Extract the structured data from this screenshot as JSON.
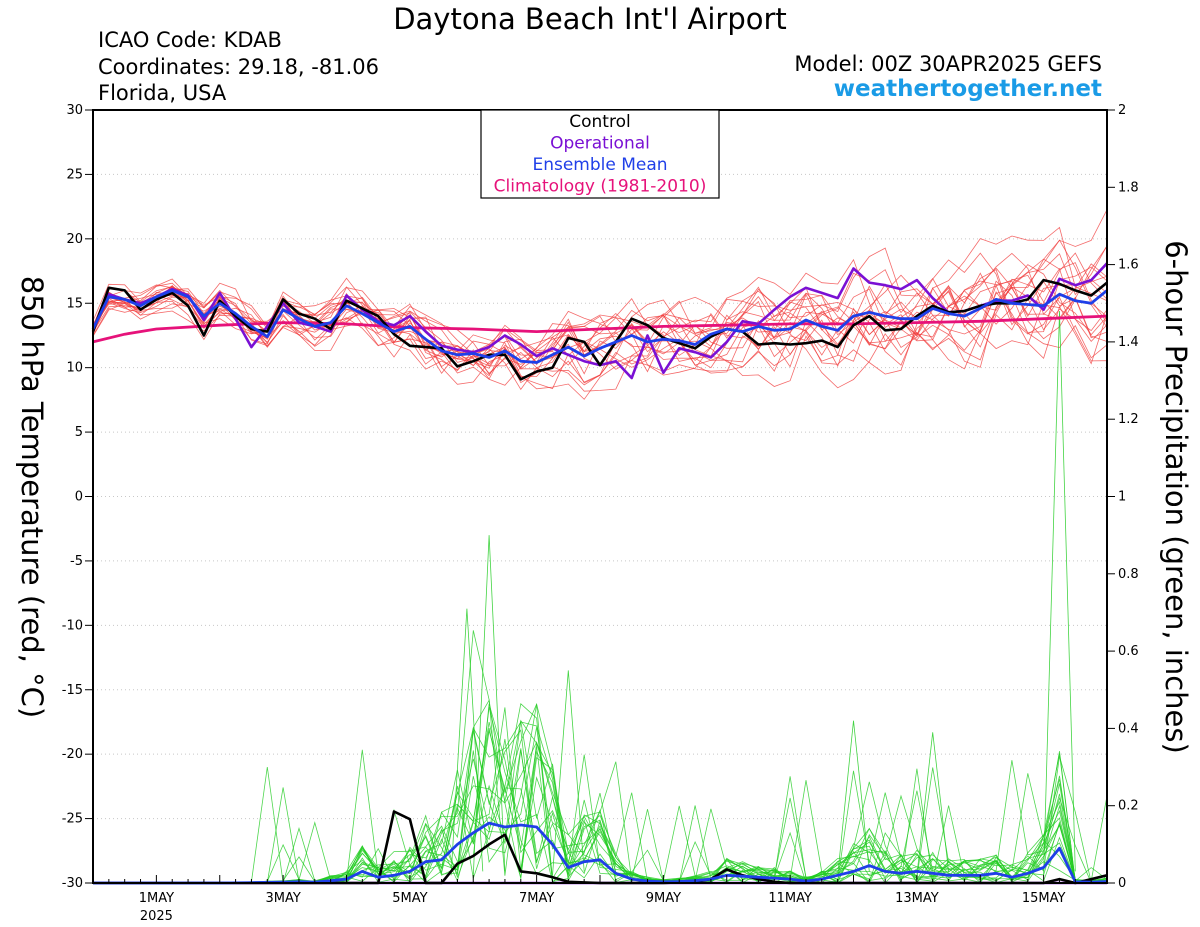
{
  "header": {
    "title": "Daytona Beach Int'l Airport",
    "icao": "ICAO Code: KDAB",
    "coordinates": "Coordinates: 29.18, -81.06",
    "region": "Florida, USA",
    "model": "Model: 00Z 30APR2025 GEFS",
    "site": "weathertogether.net"
  },
  "colors": {
    "control": "#000000",
    "operational": "#7a10d4",
    "ensemble_mean": "#1f3fe8",
    "climatology": "#e6127a",
    "members_temp": "#f03a3a",
    "members_precip": "#22cc22",
    "site": "#1a9be6"
  },
  "chart_data": {
    "type": "line",
    "xlabel": "",
    "ylabel_left": "850 hPa Temperature (red, °C)",
    "ylabel_right": "6-hour Precipitation (green, inches)",
    "x_units": "days since 30 Apr 2025 00Z",
    "xlim": [
      0,
      16
    ],
    "ylim_left": [
      -30,
      30
    ],
    "ylim_right": [
      0,
      2
    ],
    "left_ticks": [
      30,
      25,
      20,
      15,
      10,
      5,
      0,
      -5,
      -10,
      -15,
      -20,
      -25,
      -30
    ],
    "right_ticks": [
      "2",
      "1.8",
      "1.6",
      "1.4",
      "1.2",
      "1",
      "0.8",
      "0.6",
      "0.4",
      "0.2",
      "0"
    ],
    "x_ticks": [
      {
        "x": 1,
        "label": "1MAY",
        "sub": "2025"
      },
      {
        "x": 3,
        "label": "3MAY",
        "sub": ""
      },
      {
        "x": 5,
        "label": "5MAY",
        "sub": ""
      },
      {
        "x": 7,
        "label": "7MAY",
        "sub": ""
      },
      {
        "x": 9,
        "label": "9MAY",
        "sub": ""
      },
      {
        "x": 11,
        "label": "11MAY",
        "sub": ""
      },
      {
        "x": 13,
        "label": "13MAY",
        "sub": ""
      },
      {
        "x": 15,
        "label": "15MAY",
        "sub": ""
      }
    ],
    "legend": [
      {
        "label": "Control",
        "key": "control"
      },
      {
        "label": "Operational",
        "key": "operational"
      },
      {
        "label": "Ensemble Mean",
        "key": "ensemble_mean"
      },
      {
        "label": "Climatology (1981-2010)",
        "key": "climatology"
      }
    ],
    "series": [
      {
        "name": "Ensemble Mean",
        "axis": "left",
        "key": "ensemble_mean",
        "x": [
          0,
          0.25,
          0.5,
          0.75,
          1,
          1.25,
          1.5,
          1.75,
          2,
          2.25,
          2.5,
          2.75,
          3,
          3.25,
          3.5,
          3.75,
          4,
          4.25,
          4.5,
          4.75,
          5,
          5.25,
          5.5,
          5.75,
          6,
          6.25,
          6.5,
          6.75,
          7,
          7.25,
          7.5,
          7.75,
          8,
          8.25,
          8.5,
          8.75,
          9,
          9.25,
          9.5,
          9.75,
          10,
          10.25,
          10.5,
          10.75,
          11,
          11.25,
          11.5,
          11.75,
          12,
          12.25,
          12.5,
          12.75,
          13,
          13.25,
          13.5,
          13.75,
          14,
          14.25,
          14.5,
          14.75,
          15,
          15.25,
          15.5,
          15.75,
          16
        ],
        "y": [
          13,
          15.5,
          15.3,
          14.8,
          15.5,
          16,
          15.5,
          14,
          15,
          14.2,
          13.2,
          12.4,
          14.5,
          13.8,
          13.2,
          13.5,
          14.8,
          14.2,
          13.5,
          12.8,
          13.2,
          12.2,
          11.3,
          11,
          11.1,
          10.8,
          11.3,
          10.5,
          10.4,
          11,
          11.6,
          10.9,
          11.5,
          12,
          12.5,
          12,
          12.2,
          12.1,
          11.8,
          12.6,
          13,
          12.8,
          13.2,
          12.9,
          13,
          13.7,
          13.2,
          12.9,
          14,
          14.3,
          14,
          13.8,
          13.8,
          14.6,
          14.2,
          14,
          14.6,
          15.3,
          15,
          14.9,
          14.8,
          15.7,
          15.2,
          15,
          16
        ]
      },
      {
        "name": "Control",
        "axis": "left",
        "key": "control",
        "x": [
          0,
          0.25,
          0.5,
          0.75,
          1,
          1.25,
          1.5,
          1.75,
          2,
          2.25,
          2.5,
          2.75,
          3,
          3.25,
          3.5,
          3.75,
          4,
          4.25,
          4.5,
          4.75,
          5,
          5.25,
          5.5,
          5.75,
          6,
          6.25,
          6.5,
          6.75,
          7,
          7.25,
          7.5,
          7.75,
          8,
          8.25,
          8.5,
          8.75,
          9,
          9.25,
          9.5,
          9.75,
          10,
          10.25,
          10.5,
          10.75,
          11,
          11.25,
          11.5,
          11.75,
          12,
          12.25,
          12.5,
          12.75,
          13,
          13.25,
          13.5,
          13.75,
          14,
          14.25,
          14.5,
          14.75,
          15,
          15.25,
          15.5,
          15.75,
          16
        ],
        "y": [
          12.8,
          16.2,
          16,
          14.5,
          15.3,
          15.8,
          14.8,
          12.5,
          15.2,
          14,
          13,
          12.8,
          15.3,
          14.2,
          13.8,
          13,
          15.2,
          14.6,
          14,
          12.6,
          11.7,
          11.6,
          11.5,
          10.1,
          10.5,
          11,
          11,
          9.1,
          9.7,
          10,
          12.3,
          12,
          10.2,
          12,
          13.8,
          13.3,
          12.3,
          11.9,
          11.5,
          12.4,
          13,
          12.8,
          11.8,
          11.9,
          11.8,
          11.9,
          12.1,
          11.6,
          13.3,
          14,
          12.9,
          13,
          14,
          14.8,
          14.3,
          14.4,
          14.8,
          15,
          15,
          15.3,
          16.8,
          16.5,
          16,
          15.6,
          16.6
        ]
      },
      {
        "name": "Operational",
        "axis": "left",
        "key": "operational",
        "x": [
          0,
          0.25,
          0.5,
          0.75,
          1,
          1.25,
          1.5,
          1.75,
          2,
          2.25,
          2.5,
          2.75,
          3,
          3.25,
          3.5,
          3.75,
          4,
          4.25,
          4.5,
          4.75,
          5,
          5.25,
          5.5,
          5.75,
          6,
          6.25,
          6.5,
          6.75,
          7,
          7.25,
          7.5,
          7.75,
          8,
          8.25,
          8.5,
          8.75,
          9,
          9.25,
          9.5,
          9.75,
          10,
          10.25,
          10.5,
          10.75,
          11,
          11.25,
          11.5,
          11.75,
          12,
          12.25,
          12.5,
          12.75,
          13,
          13.25,
          13.5,
          13.75,
          14,
          14.25,
          14.5,
          14.75,
          15,
          15.25,
          15.5,
          15.75,
          16
        ],
        "y": [
          13,
          15.7,
          15.3,
          15,
          15.5,
          16.1,
          15.6,
          13.7,
          15.8,
          13.8,
          11.6,
          13.2,
          15,
          13.5,
          13.2,
          12.8,
          15.6,
          14.5,
          13.6,
          13.3,
          14,
          12.8,
          11.7,
          11.4,
          11.2,
          11.6,
          12.5,
          11.8,
          10.9,
          11.5,
          11,
          10.5,
          10.2,
          10.5,
          9.2,
          12.5,
          9.6,
          11.5,
          11.2,
          10.8,
          12,
          13.6,
          13.4,
          14.5,
          15.5,
          16.2,
          15.8,
          15.4,
          17.7,
          16.6,
          16.4,
          16.1,
          16.8,
          15.4,
          14.3,
          14.4,
          14.8,
          15.2,
          15.2,
          15.6,
          14.5,
          16.9,
          16.4,
          16.8,
          18.1
        ]
      },
      {
        "name": "Climatology (1981-2010)",
        "axis": "left",
        "key": "climatology",
        "x": [
          0,
          0.5,
          1,
          2,
          3,
          4,
          5,
          6,
          7,
          8,
          9,
          10,
          11,
          12,
          13,
          14,
          15,
          16
        ],
        "y": [
          12,
          12.6,
          13,
          13.3,
          13.5,
          13.4,
          13.1,
          13,
          12.8,
          13,
          13.2,
          13.3,
          13.4,
          13.4,
          13.5,
          13.6,
          13.8,
          14
        ]
      },
      {
        "name": "Ensemble Mean precipitation",
        "axis": "right",
        "key": "ensemble_mean",
        "x": [
          0,
          1,
          2,
          2.5,
          3,
          3.25,
          3.5,
          3.75,
          4,
          4.25,
          4.5,
          4.75,
          5,
          5.25,
          5.5,
          5.75,
          6,
          6.25,
          6.5,
          6.75,
          7,
          7.25,
          7.5,
          7.75,
          8,
          8.25,
          8.5,
          8.75,
          9,
          9.25,
          9.5,
          9.75,
          10,
          10.5,
          11,
          11.25,
          11.5,
          11.75,
          12,
          12.25,
          12.5,
          12.75,
          13,
          13.25,
          13.5,
          13.75,
          14,
          14.25,
          14.5,
          14.75,
          15,
          15.25,
          15.5,
          15.75,
          16
        ],
        "y": [
          0,
          0,
          0,
          0.001,
          0.002,
          0.003,
          0.002,
          0.006,
          0.01,
          0.03,
          0.015,
          0.02,
          0.03,
          0.055,
          0.06,
          0.1,
          0.13,
          0.155,
          0.145,
          0.15,
          0.145,
          0.1,
          0.04,
          0.055,
          0.06,
          0.025,
          0.01,
          0.005,
          0.003,
          0.004,
          0.006,
          0.01,
          0.02,
          0.015,
          0.01,
          0.005,
          0.01,
          0.02,
          0.03,
          0.045,
          0.03,
          0.025,
          0.03,
          0.025,
          0.02,
          0.02,
          0.02,
          0.025,
          0.015,
          0.025,
          0.04,
          0.09,
          0.003,
          0.002,
          0.004
        ]
      },
      {
        "name": "Control precipitation",
        "axis": "right",
        "key": "control",
        "x": [
          0,
          1,
          2,
          3,
          4,
          4.5,
          4.75,
          5,
          5.25,
          5.5,
          5.75,
          6,
          6.25,
          6.5,
          6.75,
          7,
          7.25,
          7.5,
          8,
          9,
          9.5,
          9.75,
          10,
          10.25,
          10.5,
          10.75,
          11,
          12,
          13,
          14,
          15,
          15.25,
          15.5,
          16
        ],
        "y": [
          0,
          0,
          0,
          0,
          0,
          0,
          0.185,
          0.165,
          0,
          0,
          0.05,
          0.07,
          0.1,
          0.125,
          0.03,
          0.025,
          0.015,
          0.003,
          0,
          0,
          0.003,
          0.01,
          0.035,
          0.02,
          0.01,
          0.003,
          0,
          0,
          0,
          0,
          0,
          0.01,
          0,
          0.02
        ]
      },
      {
        "name": "Operational precipitation",
        "axis": "right",
        "key": "operational",
        "x": [
          0,
          16
        ],
        "y": [
          0,
          0
        ]
      }
    ]
  }
}
